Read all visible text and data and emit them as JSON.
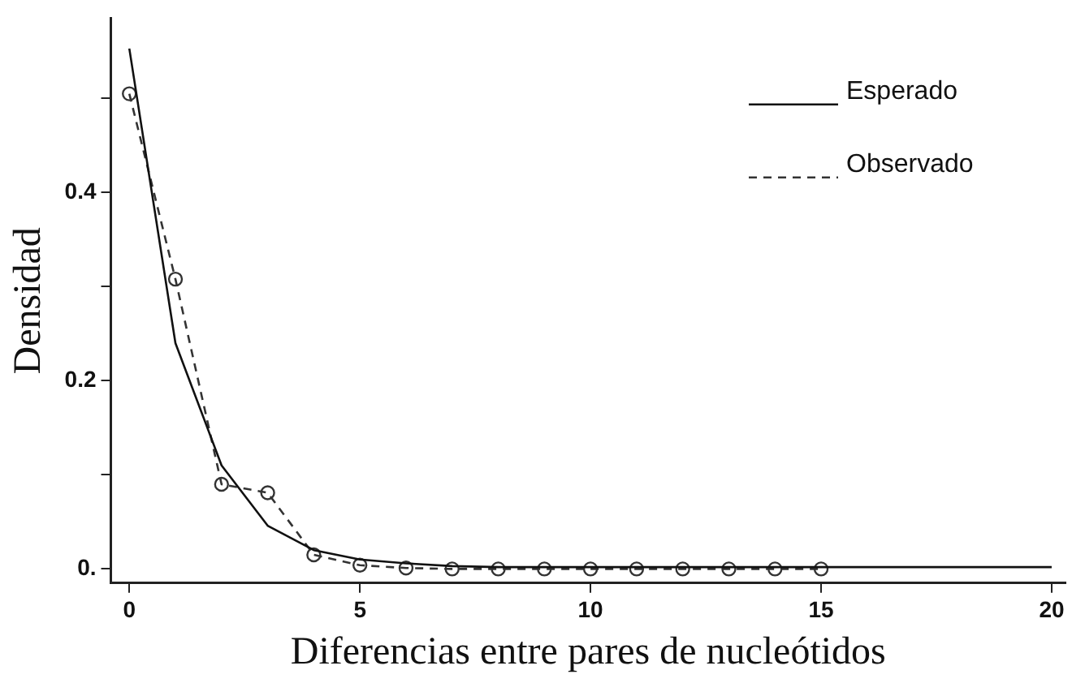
{
  "chart_data": {
    "type": "line",
    "xlabel": "Diferencias entre pares de nucleótidos",
    "ylabel": "Densidad",
    "xlim": [
      -0.4,
      20.3
    ],
    "xticks": [
      0,
      5,
      10,
      15,
      20
    ],
    "ylim": [
      -0.015,
      0.585
    ],
    "yticks": [
      {
        "value": 0,
        "label": "0."
      },
      {
        "value": 0.1,
        "label": null
      },
      {
        "value": 0.2,
        "label": "0.2"
      },
      {
        "value": 0.3,
        "label": null
      },
      {
        "value": 0.4,
        "label": "0.4"
      },
      {
        "value": 0.5,
        "label": null
      }
    ],
    "grid": false,
    "legend": "top right",
    "series": [
      {
        "name": "Esperado",
        "color": "#111111",
        "line_style": "solid",
        "marker": "none",
        "x": [
          0,
          1,
          2,
          3,
          4,
          5,
          6,
          7,
          8,
          9,
          10,
          11,
          12,
          13,
          14,
          15,
          16,
          17,
          18,
          19,
          20
        ],
        "values": [
          0.553,
          0.24,
          0.11,
          0.046,
          0.02,
          0.01,
          0.006,
          0.003,
          0.002,
          0.002,
          0.002,
          0.002,
          0.002,
          0.002,
          0.002,
          0.002,
          0.002,
          0.002,
          0.002,
          0.002,
          0.002
        ]
      },
      {
        "name": "Observado",
        "color": "#333333",
        "line_style": "dashed",
        "marker": "circle",
        "x": [
          0,
          1,
          2,
          3,
          4,
          5,
          6,
          7,
          8,
          9,
          10,
          11,
          12,
          13,
          14,
          15
        ],
        "values": [
          0.505,
          0.308,
          0.09,
          0.081,
          0.015,
          0.004,
          0.001,
          0,
          0,
          0,
          0,
          0,
          0,
          0,
          0,
          0
        ]
      }
    ]
  }
}
